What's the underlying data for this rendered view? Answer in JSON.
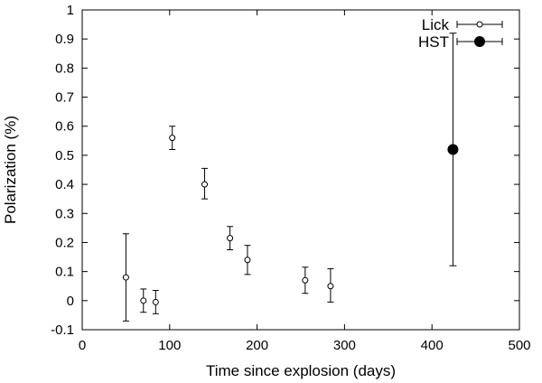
{
  "chart_data": {
    "type": "scatter",
    "xlabel": "Time since explosion (days)",
    "ylabel": "Polarization (%)",
    "xlim": [
      0,
      500
    ],
    "ylim": [
      -0.1,
      1
    ],
    "x_ticks": [
      0,
      100,
      200,
      300,
      400,
      500
    ],
    "x_tick_labels": [
      "0",
      "100",
      "200",
      "300",
      "400",
      "500"
    ],
    "y_ticks": [
      -0.1,
      0,
      0.1,
      0.2,
      0.3,
      0.4,
      0.5,
      0.6,
      0.7,
      0.8,
      0.9,
      1
    ],
    "y_tick_labels": [
      "-0.1",
      "0",
      "0.1",
      "0.2",
      "0.3",
      "0.4",
      "0.5",
      "0.6",
      "0.7",
      "0.8",
      "0.9",
      "1"
    ],
    "grid": false,
    "legend_position": "top-right",
    "series": [
      {
        "name": "Lick",
        "marker": "open-circle",
        "color": "#000000",
        "points": [
          {
            "x": 50,
            "y": 0.08,
            "ylo": -0.07,
            "yhi": 0.23
          },
          {
            "x": 70,
            "y": 0.0,
            "ylo": -0.04,
            "yhi": 0.04
          },
          {
            "x": 84,
            "y": -0.005,
            "ylo": -0.045,
            "yhi": 0.035
          },
          {
            "x": 103,
            "y": 0.56,
            "ylo": 0.52,
            "yhi": 0.6
          },
          {
            "x": 140,
            "y": 0.4,
            "ylo": 0.35,
            "yhi": 0.455
          },
          {
            "x": 169,
            "y": 0.215,
            "ylo": 0.175,
            "yhi": 0.255
          },
          {
            "x": 189,
            "y": 0.14,
            "ylo": 0.09,
            "yhi": 0.19
          },
          {
            "x": 255,
            "y": 0.07,
            "ylo": 0.025,
            "yhi": 0.115
          },
          {
            "x": 284,
            "y": 0.05,
            "ylo": -0.005,
            "yhi": 0.11
          }
        ]
      },
      {
        "name": "HST",
        "marker": "filled-circle",
        "color": "#000000",
        "points": [
          {
            "x": 424,
            "y": 0.52,
            "ylo": 0.12,
            "yhi": 0.92
          }
        ]
      }
    ]
  }
}
